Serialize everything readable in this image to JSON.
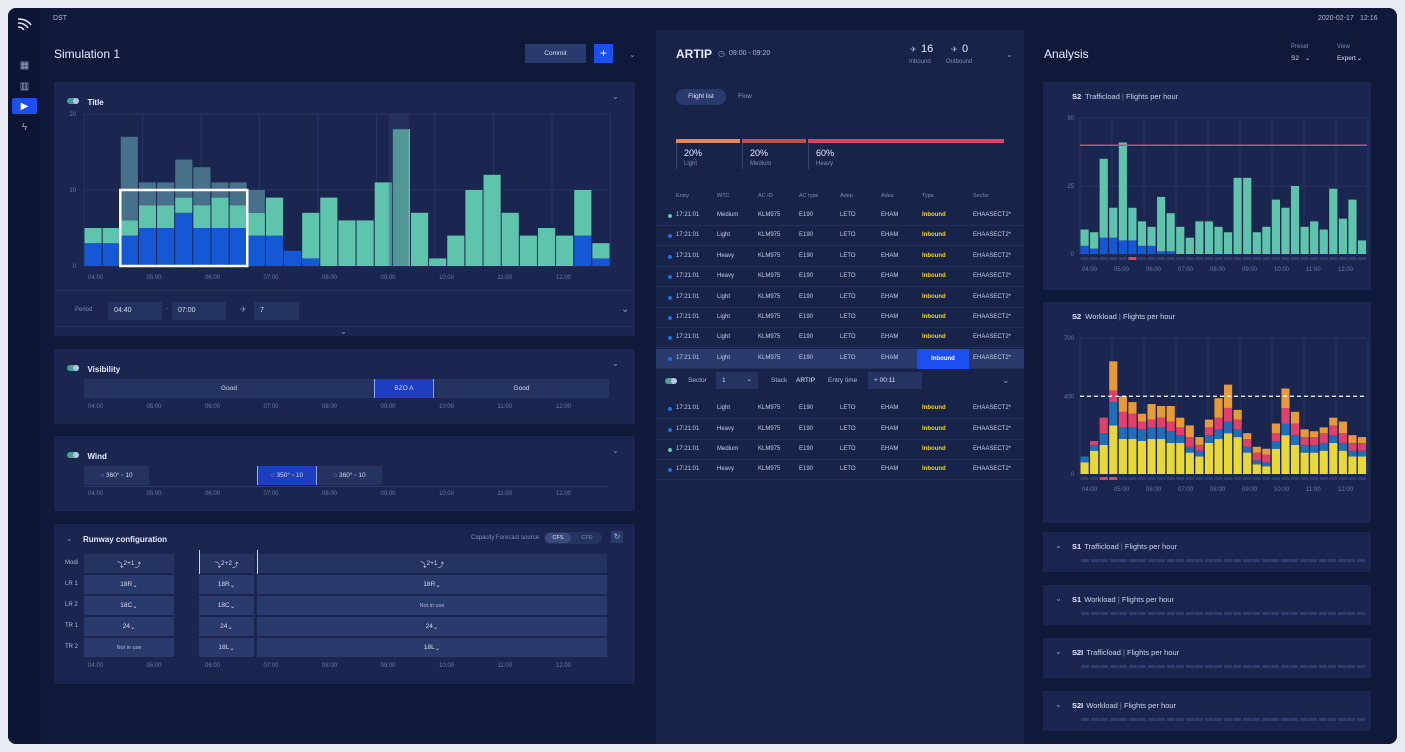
{
  "app": {
    "short": "DST",
    "date": "2020-02-17",
    "time": "12:16"
  },
  "sidebar": {
    "items": [
      "layout-icon",
      "bar-chart-icon",
      "play-icon",
      "bolt-icon"
    ]
  },
  "simulation": {
    "title": "Simulation 1",
    "commit_label": "Commit",
    "add_label": "+"
  },
  "title_panel": {
    "label": "Title",
    "y_ticks": [
      "20",
      "10",
      "0"
    ],
    "x_ticks": [
      "04:00",
      "05:00",
      "06:00",
      "07:00",
      "08:00",
      "09:00",
      "10:00",
      "11:00",
      "12:00"
    ],
    "bars": [
      [
        3,
        2,
        0
      ],
      [
        3,
        2,
        0
      ],
      [
        4,
        2,
        11
      ],
      [
        5,
        3,
        3
      ],
      [
        5,
        3,
        3
      ],
      [
        7,
        2,
        5
      ],
      [
        5,
        3,
        5
      ],
      [
        5,
        4,
        2
      ],
      [
        5,
        3,
        3
      ],
      [
        4,
        3,
        3
      ],
      [
        4,
        5,
        0
      ],
      [
        2,
        0,
        0
      ],
      [
        1,
        6,
        0
      ],
      [
        0,
        9,
        0
      ],
      [
        0,
        6,
        0
      ],
      [
        0,
        6,
        0
      ],
      [
        0,
        11,
        0
      ],
      [
        0,
        18,
        0
      ],
      [
        0,
        7,
        0
      ],
      [
        0,
        1,
        0
      ],
      [
        0,
        4,
        0
      ],
      [
        0,
        10,
        0
      ],
      [
        0,
        12,
        0
      ],
      [
        0,
        7,
        0
      ],
      [
        0,
        4,
        0
      ],
      [
        0,
        5,
        0
      ],
      [
        0,
        4,
        0
      ],
      [
        4,
        6,
        0
      ],
      [
        1,
        2,
        0
      ]
    ],
    "period_label": "Period",
    "period_from": "04:40",
    "period_sep": "-",
    "period_to": "07:00",
    "count": "7"
  },
  "visibility": {
    "label": "Visibility",
    "segments": [
      "Good",
      "BZO A",
      "Good"
    ]
  },
  "wind": {
    "label": "Wind",
    "segments": [
      {
        "dir": "360°",
        "speed": "10"
      },
      {
        "dir": "350°",
        "speed": "10"
      },
      {
        "dir": "360°",
        "speed": "10"
      }
    ]
  },
  "runway": {
    "label": "Runway configuration",
    "source_label": "Capacity Forecast source",
    "src_a": "CFS",
    "src_b": "CFD",
    "rows": [
      {
        "name": "Modi",
        "cells": [
          "2+1",
          "2+2",
          "2+1"
        ]
      },
      {
        "name": "LR 1",
        "cells": [
          "18R",
          "18R",
          "18R"
        ]
      },
      {
        "name": "LR 2",
        "cells": [
          "18C",
          "18C",
          "Not in use"
        ]
      },
      {
        "name": "TR 1",
        "cells": [
          "24",
          "24",
          "24"
        ]
      },
      {
        "name": "TR 2",
        "cells": [
          "Not in use",
          "18L",
          "18L"
        ]
      }
    ]
  },
  "artip": {
    "title": "ARTIP",
    "time": "09:00 - 09:20",
    "inbound": "16",
    "inbound_label": "Inbound",
    "outbound": "0",
    "outbound_label": "Outbound",
    "tabs": [
      "Flight list",
      "Flow"
    ],
    "wtc": [
      {
        "pct": "20%",
        "label": "Light",
        "color": "#e08a55"
      },
      {
        "pct": "20%",
        "label": "Medium",
        "color": "#c0504e"
      },
      {
        "pct": "60%",
        "label": "Heavy",
        "color": "#e0406a"
      }
    ],
    "headers": [
      "Entry",
      "WTC",
      "AC ID",
      "AC type",
      "Adep",
      "Ades",
      "Type",
      "Sector"
    ],
    "rows": [
      {
        "entry": "17:21:01",
        "wtc": "Medium",
        "acid": "KLM975",
        "actype": "E190",
        "adep": "LETO",
        "ades": "EHAM",
        "type": "Inbound",
        "sector": "EHAASECT2*"
      },
      {
        "entry": "17:21:01",
        "wtc": "Light",
        "acid": "KLM975",
        "actype": "E190",
        "adep": "LETO",
        "ades": "EHAM",
        "type": "Inbound",
        "sector": "EHAASECT2*"
      },
      {
        "entry": "17:21:01",
        "wtc": "Heavy",
        "acid": "KLM975",
        "actype": "E190",
        "adep": "LETO",
        "ades": "EHAM",
        "type": "Inbound",
        "sector": "EHAASECT2*"
      },
      {
        "entry": "17:21:01",
        "wtc": "Heavy",
        "acid": "KLM975",
        "actype": "E190",
        "adep": "LETO",
        "ades": "EHAM",
        "type": "Inbound",
        "sector": "EHAASECT2*"
      },
      {
        "entry": "17:21:01",
        "wtc": "Light",
        "acid": "KLM975",
        "actype": "E190",
        "adep": "LETO",
        "ades": "EHAM",
        "type": "Inbound",
        "sector": "EHAASECT2*"
      },
      {
        "entry": "17:21:01",
        "wtc": "Light",
        "acid": "KLM975",
        "actype": "E190",
        "adep": "LETO",
        "ades": "EHAM",
        "type": "Inbound",
        "sector": "EHAASECT2*"
      },
      {
        "entry": "17:21:01",
        "wtc": "Light",
        "acid": "KLM975",
        "actype": "E190",
        "adep": "LETO",
        "ades": "EHAM",
        "type": "Inbound",
        "sector": "EHAASECT2*"
      },
      {
        "entry": "17:21:01",
        "wtc": "Light",
        "acid": "KLM975",
        "actype": "E190",
        "adep": "LETO",
        "ades": "EHAM",
        "type": "Inbound",
        "sector": "EHAASECT2*"
      },
      {
        "entry": "17:21:01",
        "wtc": "Light",
        "acid": "KLM975",
        "actype": "E190",
        "adep": "LETO",
        "ades": "EHAM",
        "type": "Inbound",
        "sector": "EHAASECT2*"
      },
      {
        "entry": "17:21:01",
        "wtc": "Heavy",
        "acid": "KLM975",
        "actype": "E190",
        "adep": "LETO",
        "ades": "EHAM",
        "type": "Inbound",
        "sector": "EHAASECT2*"
      },
      {
        "entry": "17:21:01",
        "wtc": "Medium",
        "acid": "KLM975",
        "actype": "E190",
        "adep": "LETO",
        "ades": "EHAM",
        "type": "Inbound",
        "sector": "EHAASECT2*"
      },
      {
        "entry": "17:21:01",
        "wtc": "Heavy",
        "acid": "KLM975",
        "actype": "E190",
        "adep": "LETO",
        "ades": "EHAM",
        "type": "Inbound",
        "sector": "EHAASECT2*"
      }
    ],
    "edit": {
      "sector_label": "Sector",
      "sector_value": "1",
      "stack_label": "Stack",
      "stack_value": "ARTIP",
      "entry_label": "Entry time",
      "entry_value": "+ 00:11"
    }
  },
  "analysis": {
    "title": "Analysis",
    "preset_label": "Preset",
    "preset_value": "S2",
    "view_label": "View",
    "view_value": "Expert",
    "traffic": {
      "sector": "S2",
      "name": "Trafficload",
      "unit": "Flights per hour",
      "y_ticks": [
        "50",
        "25",
        "0"
      ],
      "bars": [
        [
          3,
          6
        ],
        [
          2,
          6
        ],
        [
          6,
          29
        ],
        [
          6,
          11
        ],
        [
          5,
          36
        ],
        [
          5,
          12
        ],
        [
          3,
          9
        ],
        [
          3,
          7
        ],
        [
          1,
          20
        ],
        [
          1,
          14
        ],
        [
          0,
          10
        ],
        [
          0,
          6
        ],
        [
          0,
          12
        ],
        [
          0,
          12
        ],
        [
          0,
          10
        ],
        [
          0,
          8
        ],
        [
          0,
          28
        ],
        [
          0,
          28
        ],
        [
          0,
          8
        ],
        [
          0,
          10
        ],
        [
          0,
          20
        ],
        [
          0,
          17
        ],
        [
          0,
          25
        ],
        [
          0,
          10
        ],
        [
          0,
          12
        ],
        [
          0,
          9
        ],
        [
          0,
          24
        ],
        [
          0,
          13
        ],
        [
          0,
          20
        ],
        [
          0,
          5
        ]
      ]
    },
    "workload": {
      "sector": "S2",
      "name": "Workload",
      "unit": "Flights per hour",
      "y_ticks": [
        "700",
        "400",
        "0"
      ],
      "bars": [
        [
          60,
          30,
          0,
          0
        ],
        [
          120,
          30,
          20,
          0
        ],
        [
          150,
          60,
          80,
          0
        ],
        [
          250,
          120,
          60,
          150
        ],
        [
          180,
          60,
          80,
          80
        ],
        [
          180,
          60,
          70,
          60
        ],
        [
          170,
          60,
          40,
          40
        ],
        [
          180,
          60,
          40,
          80
        ],
        [
          180,
          60,
          50,
          60
        ],
        [
          160,
          60,
          50,
          80
        ],
        [
          160,
          40,
          40,
          50
        ],
        [
          110,
          30,
          50,
          60
        ],
        [
          90,
          30,
          30,
          40
        ],
        [
          160,
          40,
          40,
          40
        ],
        [
          180,
          50,
          60,
          100
        ],
        [
          210,
          60,
          70,
          120
        ],
        [
          190,
          40,
          50,
          50
        ],
        [
          110,
          30,
          40,
          30
        ],
        [
          50,
          20,
          40,
          30
        ],
        [
          40,
          20,
          40,
          30
        ],
        [
          130,
          40,
          40,
          50
        ],
        [
          200,
          60,
          80,
          100
        ],
        [
          150,
          50,
          60,
          60
        ],
        [
          110,
          40,
          40,
          40
        ],
        [
          110,
          40,
          40,
          30
        ],
        [
          120,
          40,
          50,
          30
        ],
        [
          160,
          40,
          50,
          40
        ],
        [
          120,
          40,
          50,
          60
        ],
        [
          90,
          30,
          40,
          40
        ],
        [
          90,
          30,
          40,
          30
        ]
      ]
    },
    "collapsed": [
      {
        "sector": "S1",
        "name": "Trafficload",
        "unit": "Flights per hour"
      },
      {
        "sector": "S1",
        "name": "Workload",
        "unit": "Flights per hour"
      },
      {
        "sector": "S2I",
        "name": "Trafficload",
        "unit": "Flights per hour"
      },
      {
        "sector": "S2I",
        "name": "Workload",
        "unit": "Flights per hour"
      }
    ],
    "x_ticks": [
      "04:00",
      "05:00",
      "06:00",
      "07:00",
      "08:00",
      "09:00",
      "10:00",
      "11:00",
      "12:00"
    ]
  }
}
